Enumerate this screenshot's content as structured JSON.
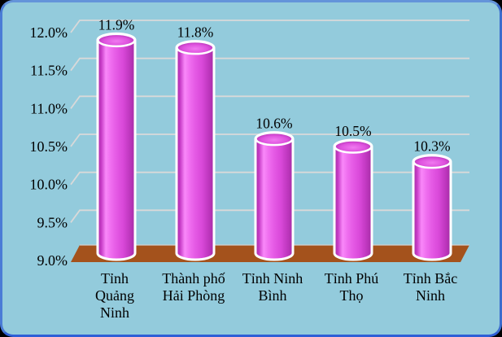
{
  "chart_data": {
    "type": "bar",
    "style": "3d-cylinder",
    "title": "",
    "xlabel": "",
    "ylabel": "",
    "legend": "none",
    "grid": true,
    "categories": [
      "Tỉnh Quảng Ninh",
      "Thành phố Hải Phòng",
      "Tỉnh Ninh Bình",
      "Tỉnh Phú Thọ",
      "Tỉnh Bắc Ninh"
    ],
    "category_label_lines": [
      [
        "Tỉnh",
        "Quảng",
        "Ninh"
      ],
      [
        "Thành phố",
        "Hải Phòng"
      ],
      [
        "Tỉnh Ninh",
        "Bình"
      ],
      [
        "Tỉnh Phú",
        "Thọ"
      ],
      [
        "Tỉnh Bắc",
        "Ninh"
      ]
    ],
    "values": [
      11.9,
      11.8,
      10.6,
      10.5,
      10.3
    ],
    "data_labels": [
      "11.9%",
      "11.8%",
      "10.6%",
      "10.5%",
      "10.3%"
    ],
    "yticks": [
      "12.0%",
      "11.5%",
      "11.0%",
      "10.5%",
      "10.0%",
      "9.5%",
      "9.0%"
    ],
    "ytick_values": [
      12.0,
      11.5,
      11.0,
      10.5,
      10.0,
      9.5,
      9.0
    ],
    "ylim": [
      9.0,
      12.0
    ],
    "ytick_step": 0.5
  },
  "colors": {
    "panel_background": "#93cbdc",
    "panel_border": "#3f6fd2",
    "outer_background": "#000000",
    "gridline": "#d9d9d9",
    "floor": "#a4521c",
    "floor_edge": "#cfcfcf",
    "bar_outline": "#ffffff",
    "bar_dark": "#a12ba1",
    "bar_mid": "#e256e2",
    "bar_highlight": "#f988f9",
    "text": "#000000"
  }
}
